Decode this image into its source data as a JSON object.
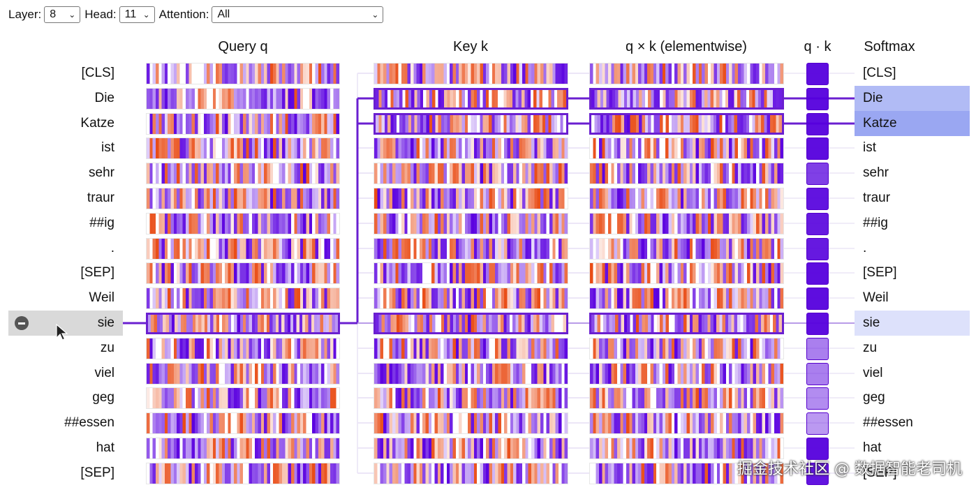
{
  "controls": {
    "layer_label": "Layer:",
    "layer_value": "8",
    "head_label": "Head:",
    "head_value": "11",
    "attention_label": "Attention:",
    "attention_value": "All"
  },
  "columns": {
    "query": "Query q",
    "key": "Key k",
    "product": "q × k (elementwise)",
    "dot": "q · k",
    "softmax": "Softmax"
  },
  "tokens": [
    "[CLS]",
    "Die",
    "Katze",
    "ist",
    "sehr",
    "traur",
    "##ig",
    ".",
    "[SEP]",
    "Weil",
    "sie",
    "zu",
    "viel",
    "geg",
    "##essen",
    "hat",
    "[SEP]"
  ],
  "selected_token_index": 10,
  "highlighted_key_indices": [
    1,
    2
  ],
  "dot_strength": [
    0.95,
    0.95,
    0.95,
    0.95,
    0.75,
    0.92,
    0.9,
    0.9,
    0.95,
    0.95,
    0.95,
    0.5,
    0.5,
    0.45,
    0.4,
    0.95,
    0.92
  ],
  "softmax_weights": [
    0.0,
    0.5,
    0.65,
    0.0,
    0.0,
    0.0,
    0.0,
    0.0,
    0.0,
    0.0,
    0.22,
    0.0,
    0.0,
    0.0,
    0.0,
    0.0,
    0.0
  ],
  "colors": {
    "positive": "#e8430a",
    "negative": "#5a00e0",
    "highlight": "#6a1fd0",
    "softmax": "#8a9cf0"
  },
  "watermark": "掘金技术社区 @ 数据智能老司机"
}
